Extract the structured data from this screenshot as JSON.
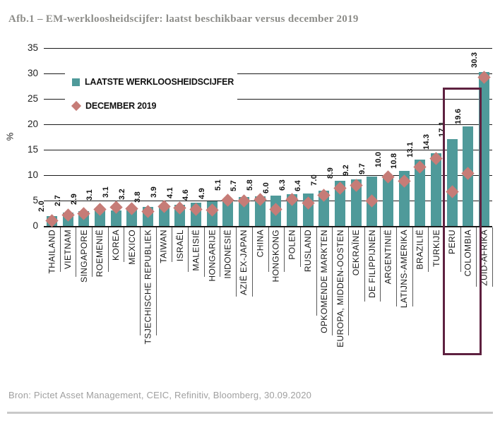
{
  "title": "Afb.1 –  EM-werkloosheidscijfer: laatst beschikbaar versus december 2019",
  "source": "Bron: Pictet Asset Management, CEIC, Refinitiv, Bloomberg, 30.09.2020",
  "colors": {
    "bar": "#4f9a9a",
    "diamond": "#c67c77",
    "highlight": "#5e2140",
    "grid": "#1a1a1a",
    "title": "#8d8d89",
    "source": "#a0a0a0"
  },
  "legend": {
    "items": [
      {
        "label": "LAATSTE WERKLOOSHEIDSCIJFER",
        "swatch": "square"
      },
      {
        "label": "DECEMBER 2019",
        "swatch": "diamond"
      }
    ]
  },
  "chart_data": {
    "type": "bar",
    "title": "Afb.1 – EM-werkloosheidscijfer: laatst beschikbaar versus december 2019",
    "xlabel": "",
    "ylabel": "%",
    "ylim": [
      0,
      35
    ],
    "yticks": [
      0,
      5,
      10,
      15,
      20,
      25,
      30,
      35
    ],
    "grid": true,
    "legend_position": "upper-left-inside",
    "categories": [
      "THAILAND",
      "VIETNAM",
      "SINGAPORE",
      "ROEMENIË",
      "KOREA",
      "MEXICO",
      "TSJECHISCHE REPUBLIEK",
      "TAIWAN",
      "ISRAËL",
      "MALEISIË",
      "HONGARIJE",
      "INDONESIË",
      "AZIË EX-JAPAN",
      "CHINA",
      "HONGKONG",
      "POLEN",
      "RUSLAND",
      "OPKOMENDE MARKTEN",
      "EUROPA, MIDDEN-OOSTEN",
      "OEKRAÏNE",
      "DE FILIPPIJNEN",
      "ARGENTINIË",
      "LATIJNS-AMERIKA",
      "BRAZILIË",
      "TURKIJE",
      "PERU",
      "COLOMBIA",
      "ZUID-AFRIKA"
    ],
    "series": [
      {
        "name": "LAATSTE WERKLOOSHEIDSCIJFER",
        "style": "bar",
        "values": [
          2.0,
          2.7,
          2.9,
          3.1,
          3.1,
          3.2,
          3.8,
          3.9,
          4.1,
          4.6,
          4.9,
          5.1,
          5.7,
          5.8,
          6.0,
          6.3,
          6.4,
          7.0,
          8.9,
          9.2,
          9.7,
          10.0,
          10.8,
          13.1,
          14.3,
          17.1,
          19.6,
          30.3
        ]
      },
      {
        "name": "DECEMBER 2019",
        "style": "diamond",
        "values": [
          1.0,
          2.1,
          2.4,
          3.2,
          3.7,
          3.4,
          2.8,
          3.8,
          3.6,
          3.2,
          3.1,
          5.1,
          5.0,
          5.2,
          3.3,
          5.2,
          4.5,
          6.1,
          7.5,
          8.0,
          4.9,
          9.7,
          8.8,
          11.6,
          13.2,
          6.7,
          10.4,
          29.3
        ]
      }
    ],
    "bar_labels": [
      "2.0",
      "2.7",
      "2.9",
      "3.1",
      "3.1",
      "3.2",
      "3.8",
      "3.9",
      "4.1",
      "4.6",
      "4.9",
      "5.1",
      "5.7",
      "5.8",
      "6.0",
      "6.3",
      "6.4",
      "7.0",
      "8.9",
      "9.2",
      "9.7",
      "10.0",
      "10.8",
      "13.1",
      "14.3",
      "17.1",
      "19.6",
      "30.3"
    ],
    "highlighted_categories": [
      "PERU",
      "COLOMBIA"
    ]
  }
}
